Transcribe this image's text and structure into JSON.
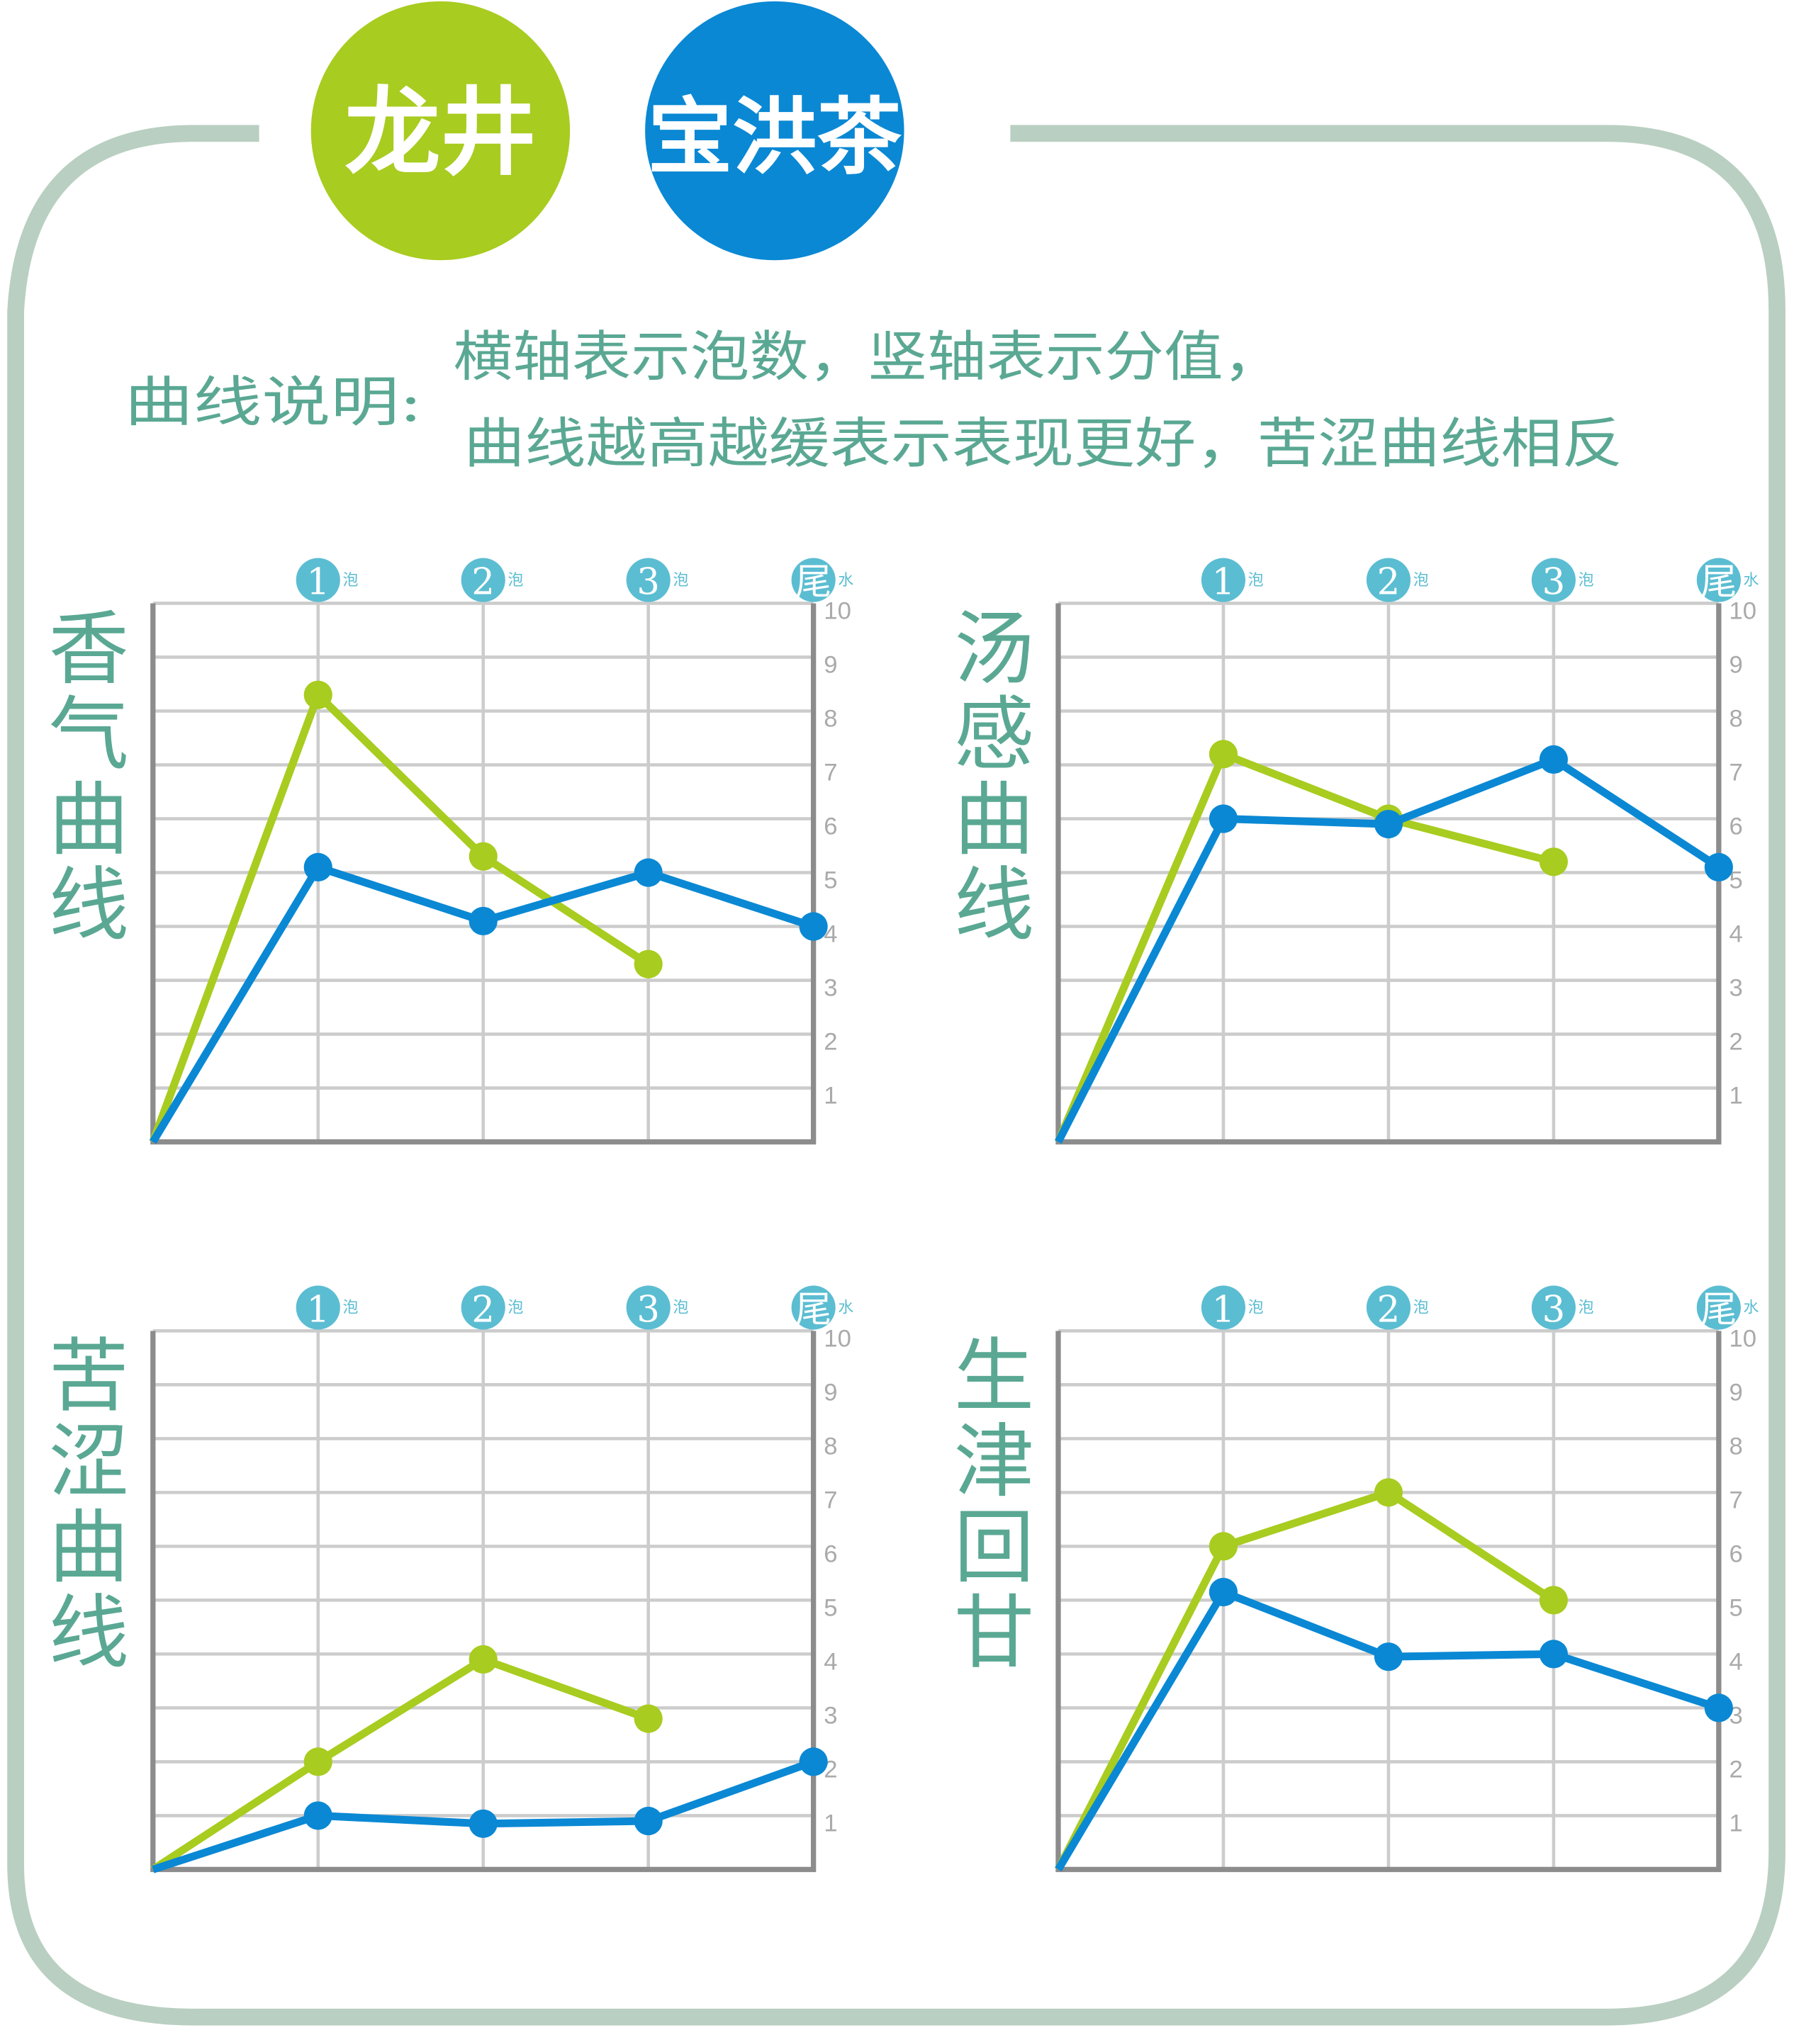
{
  "legend": {
    "items": [
      {
        "label": "龙井",
        "color": "#a8cc1f"
      },
      {
        "label": "宝洪茶",
        "color": "#0a88d4"
      }
    ]
  },
  "description": {
    "label": "曲线说明:",
    "line1": "横轴表示泡数，竖轴表示分值，",
    "line2": "曲线越高越缓表示表现更好，苦涩曲线相反"
  },
  "colors": {
    "text": "#5aa893",
    "frame": "#b9cfc1",
    "tick_circle": "#5bbdd2",
    "grid": "#cccccc",
    "axis": "#8c8c8c",
    "y_tick_text": "#aaaaaa"
  },
  "chart_data": [
    {
      "type": "line",
      "title": "香气曲线",
      "x_ticks": [
        {
          "main": "1",
          "sub": "泡"
        },
        {
          "main": "2",
          "sub": "泡"
        },
        {
          "main": "3",
          "sub": "泡"
        },
        {
          "main": "尾",
          "sub": "水"
        }
      ],
      "y_ticks": [
        "10",
        "9",
        "8",
        "7",
        "6",
        "5",
        "4",
        "3",
        "2",
        "1"
      ],
      "ylim": [
        0,
        10
      ],
      "grid": true,
      "series": [
        {
          "name": "龙井",
          "values": [
            0,
            8.3,
            5.3,
            3.3
          ]
        },
        {
          "name": "宝洪茶",
          "values": [
            0,
            5.1,
            4.1,
            5.0,
            4.0
          ]
        }
      ]
    },
    {
      "type": "line",
      "title": "汤感曲线",
      "x_ticks": [
        {
          "main": "1",
          "sub": "泡"
        },
        {
          "main": "2",
          "sub": "泡"
        },
        {
          "main": "3",
          "sub": "泡"
        },
        {
          "main": "尾",
          "sub": "水"
        }
      ],
      "y_ticks": [
        "10",
        "9",
        "8",
        "7",
        "6",
        "5",
        "4",
        "3",
        "2",
        "1"
      ],
      "ylim": [
        0,
        10
      ],
      "grid": true,
      "series": [
        {
          "name": "龙井",
          "values": [
            0,
            7.2,
            6.0,
            5.2
          ]
        },
        {
          "name": "宝洪茶",
          "values": [
            0,
            6.0,
            5.9,
            7.1,
            5.1
          ]
        }
      ]
    },
    {
      "type": "line",
      "title": "苦涩曲线",
      "x_ticks": [
        {
          "main": "1",
          "sub": "泡"
        },
        {
          "main": "2",
          "sub": "泡"
        },
        {
          "main": "3",
          "sub": "泡"
        },
        {
          "main": "尾",
          "sub": "水"
        }
      ],
      "y_ticks": [
        "10",
        "9",
        "8",
        "7",
        "6",
        "5",
        "4",
        "3",
        "2",
        "1"
      ],
      "ylim": [
        0,
        10
      ],
      "grid": true,
      "series": [
        {
          "name": "龙井",
          "values": [
            0,
            2.0,
            3.9,
            2.8
          ]
        },
        {
          "name": "宝洪茶",
          "values": [
            0,
            1.0,
            0.85,
            0.9,
            2.0
          ]
        }
      ]
    },
    {
      "type": "line",
      "title": "生津回甘",
      "x_ticks": [
        {
          "main": "1",
          "sub": "泡"
        },
        {
          "main": "2",
          "sub": "泡"
        },
        {
          "main": "3",
          "sub": "泡"
        },
        {
          "main": "尾",
          "sub": "水"
        }
      ],
      "y_ticks": [
        "10",
        "9",
        "8",
        "7",
        "6",
        "5",
        "4",
        "3",
        "2",
        "1"
      ],
      "ylim": [
        0,
        10
      ],
      "grid": true,
      "series": [
        {
          "name": "龙井",
          "values": [
            0,
            6.0,
            7.0,
            5.0
          ]
        },
        {
          "name": "宝洪茶",
          "values": [
            0,
            5.15,
            3.95,
            4.0,
            3.0
          ]
        }
      ]
    }
  ]
}
